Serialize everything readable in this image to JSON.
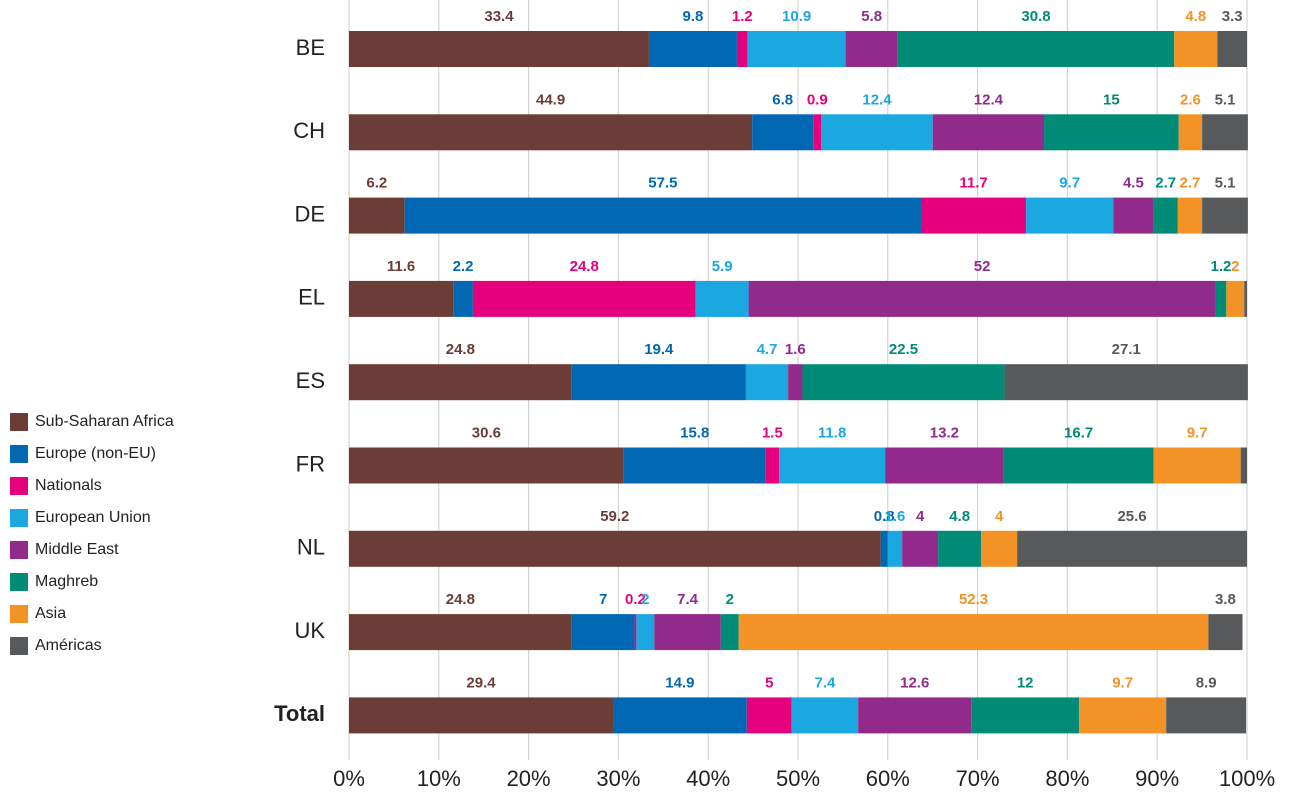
{
  "chart_data": {
    "type": "stacked-barh",
    "categories": [
      "BE",
      "CH",
      "DE",
      "EL",
      "ES",
      "FR",
      "NL",
      "UK",
      "Total"
    ],
    "series": [
      {
        "name": "Sub-Saharan Africa",
        "color": "#6c3d36",
        "values": [
          33.4,
          44.9,
          6.2,
          11.6,
          24.8,
          30.6,
          59.2,
          24.8,
          29.4
        ]
      },
      {
        "name": "Europe (non-EU)",
        "color": "#0068b3",
        "values": [
          9.8,
          6.8,
          57.5,
          2.2,
          19.4,
          15.8,
          0.8,
          7.0,
          14.9
        ]
      },
      {
        "name": "Nationals",
        "color": "#e6007e",
        "values": [
          1.2,
          0.9,
          11.7,
          24.8,
          null,
          1.5,
          null,
          0.2,
          5.0
        ]
      },
      {
        "name": "European Union",
        "color": "#1ba8e0",
        "values": [
          10.9,
          12.4,
          9.7,
          5.9,
          4.7,
          11.8,
          1.6,
          2.0,
          7.4
        ]
      },
      {
        "name": "Middle East",
        "color": "#922a8b",
        "values": [
          5.8,
          12.4,
          4.5,
          52.0,
          1.6,
          13.2,
          4.0,
          7.4,
          12.6
        ]
      },
      {
        "name": "Maghreb",
        "color": "#008b77",
        "values": [
          30.8,
          15.0,
          2.7,
          1.2,
          22.5,
          16.7,
          4.8,
          2.0,
          12.0
        ]
      },
      {
        "name": "Asia",
        "color": "#f39325",
        "values": [
          4.8,
          2.6,
          2.7,
          2.0,
          null,
          9.7,
          4.0,
          52.3,
          9.7
        ]
      },
      {
        "name": "Américas",
        "color": "#58595b",
        "values": [
          3.3,
          5.1,
          5.1,
          0.3,
          27.1,
          0.7,
          25.6,
          3.8,
          8.9
        ]
      }
    ],
    "unlabeled": [
      [
        3,
        7
      ],
      [
        5,
        7
      ]
    ],
    "xlim": [
      0,
      100
    ],
    "xticks": [
      {
        "value": 0,
        "label": "0%"
      },
      {
        "value": 10,
        "label": "10%"
      },
      {
        "value": 20,
        "label": "20%"
      },
      {
        "value": 30,
        "label": "30%"
      },
      {
        "value": 40,
        "label": "40%"
      },
      {
        "value": 50,
        "label": "50%"
      },
      {
        "value": 60,
        "label": "60%"
      },
      {
        "value": 70,
        "label": "70%"
      },
      {
        "value": 80,
        "label": "80%"
      },
      {
        "value": 90,
        "label": "90%"
      },
      {
        "value": 100,
        "label": "100%"
      }
    ],
    "grid": true
  }
}
